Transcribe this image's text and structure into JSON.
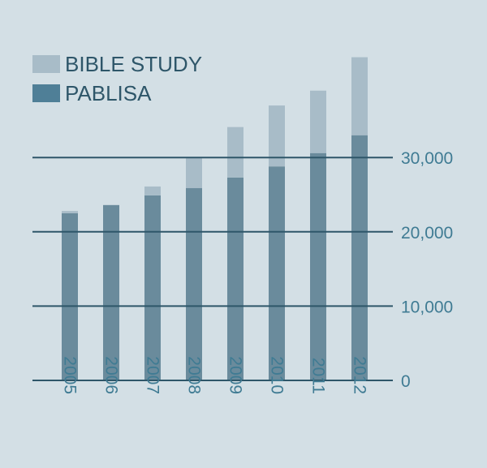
{
  "chart_data": {
    "type": "bar",
    "stacked": true,
    "categories": [
      "2005",
      "2006",
      "2007",
      "2008",
      "2009",
      "2010",
      "2011",
      "2012"
    ],
    "series": [
      {
        "name": "PABLISA",
        "values": [
          22500,
          23600,
          24900,
          25900,
          27300,
          28800,
          30600,
          33000
        ],
        "color": "#6a8b9c"
      },
      {
        "name": "BIBLE STUDY",
        "values": [
          300,
          0,
          1200,
          4000,
          6800,
          8200,
          8400,
          10500
        ],
        "color": "#a8bcc8"
      }
    ],
    "legend": [
      {
        "label": "BIBLE STUDY",
        "color": "#a8bcc8"
      },
      {
        "label": "PABLISA",
        "color": "#4f7f97"
      }
    ],
    "yticks": [
      "0",
      "10,000",
      "20,000",
      "30,000"
    ],
    "ytick_values": [
      0,
      10000,
      20000,
      30000
    ],
    "ylim": [
      0,
      44000
    ],
    "grid": true,
    "legend_position": "top-left",
    "axis_color": "#2e5669",
    "tick_label_color": "#3f7b93",
    "text_color": "#2e5669"
  }
}
